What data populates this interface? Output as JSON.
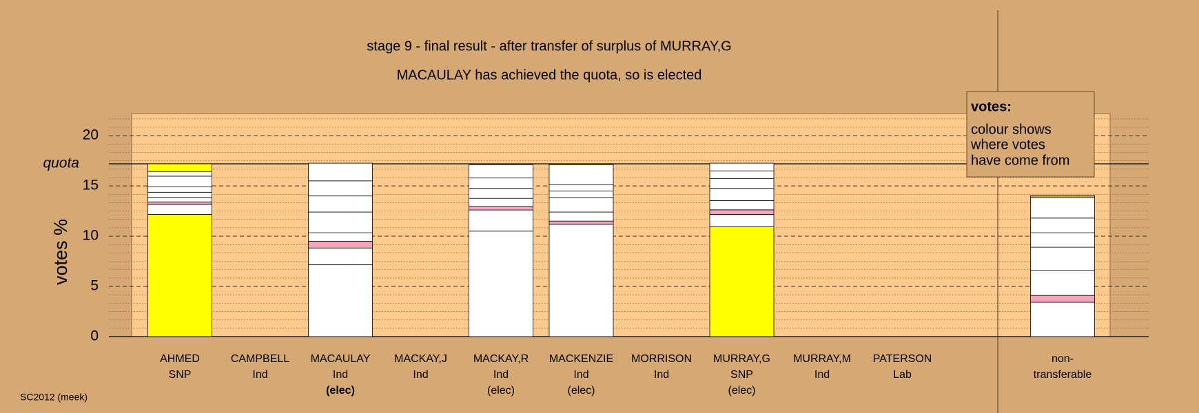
{
  "chart_data": {
    "type": "stacked-bar",
    "title": "stage 9 - final result - after transfer of surplus of MURRAY,G",
    "subtitle": "MACAULAY has achieved the quota, so is elected",
    "y_label": "votes %",
    "footer": "SC2012 (meek)",
    "ylim": [
      0,
      22.2
    ],
    "yticks": [
      0,
      5,
      10,
      15,
      20
    ],
    "grid": true,
    "quota": {
      "value": 17.2,
      "label": "quota"
    },
    "legend": {
      "title": "votes:",
      "lines": [
        "colour shows",
        "where votes",
        "have come from"
      ]
    },
    "labels": [
      [
        "AHMED",
        "SNP"
      ],
      [
        "CAMPBELL",
        "Ind"
      ],
      [
        "MACAULAY",
        "Ind",
        "(elec)"
      ],
      [
        "MACKAY,J",
        "Ind"
      ],
      [
        "MACKAY,R",
        "Ind",
        "(elec)"
      ],
      [
        "MACKENZIE",
        "Ind",
        "(elec)"
      ],
      [
        "MORRISON",
        "Ind"
      ],
      [
        "MURRAY,G",
        "SNP",
        "(elec)"
      ],
      [
        "MURRAY,M",
        "Ind"
      ],
      [
        "PATERSON",
        "Lab"
      ],
      [
        "non-",
        "transferable"
      ]
    ],
    "stacks": [
      {
        "values": [
          12.17,
          0.99,
          0.25,
          0.44,
          0.52,
          0.53,
          1.07,
          0.46,
          0.77
        ],
        "colors": [
          "#ffff00",
          "#ffffff",
          "#f4a6b8",
          "#ffffff",
          "#ffffff",
          "#ffffff",
          "#ffffff",
          "#ffffff",
          "#ffff00"
        ]
      },
      {
        "values": [],
        "colors": []
      },
      {
        "values": [
          7.15,
          1.67,
          0.68,
          0.84,
          2.06,
          1.6,
          1.5,
          1.76
        ],
        "colors": [
          "#ffffff",
          "#ffffff",
          "#f4a6b8",
          "#ffffff",
          "#ffffff",
          "#ffffff",
          "#ffffff",
          "#ffffff"
        ]
      },
      {
        "values": [],
        "colors": []
      },
      {
        "values": [
          10.5,
          2.1,
          0.35,
          0.81,
          0.99,
          1.05,
          1.3
        ],
        "colors": [
          "#ffffff",
          "#ffffff",
          "#f4a6b8",
          "#ffffff",
          "#ffffff",
          "#ffffff",
          "#ffffff"
        ]
      },
      {
        "values": [
          11.18,
          0.32,
          0.9,
          1.44,
          0.66,
          0.6,
          2.0,
          0.1
        ],
        "colors": [
          "#ffffff",
          "#f4a6b8",
          "#ffffff",
          "#ffffff",
          "#ffffff",
          "#ffffff",
          "#ffffff",
          "#c8b040"
        ]
      },
      {
        "values": [],
        "colors": []
      },
      {
        "values": [
          10.95,
          1.22,
          0.45,
          0.92,
          1.21,
          0.99,
          0.76,
          0.76
        ],
        "colors": [
          "#ffff00",
          "#ffffff",
          "#f4a6b8",
          "#ffffff",
          "#ffffff",
          "#ffffff",
          "#ffffff",
          "#ffffff"
        ]
      },
      {
        "values": [],
        "colors": []
      },
      {
        "values": [],
        "colors": []
      },
      {
        "values": [
          3.42,
          0.68,
          2.5,
          2.3,
          1.44,
          1.46,
          2.04,
          0.2
        ],
        "colors": [
          "#ffffff",
          "#f4a6b8",
          "#ffffff",
          "#ffffff",
          "#ffffff",
          "#ffffff",
          "#ffffff",
          "#c8b040"
        ]
      }
    ]
  }
}
